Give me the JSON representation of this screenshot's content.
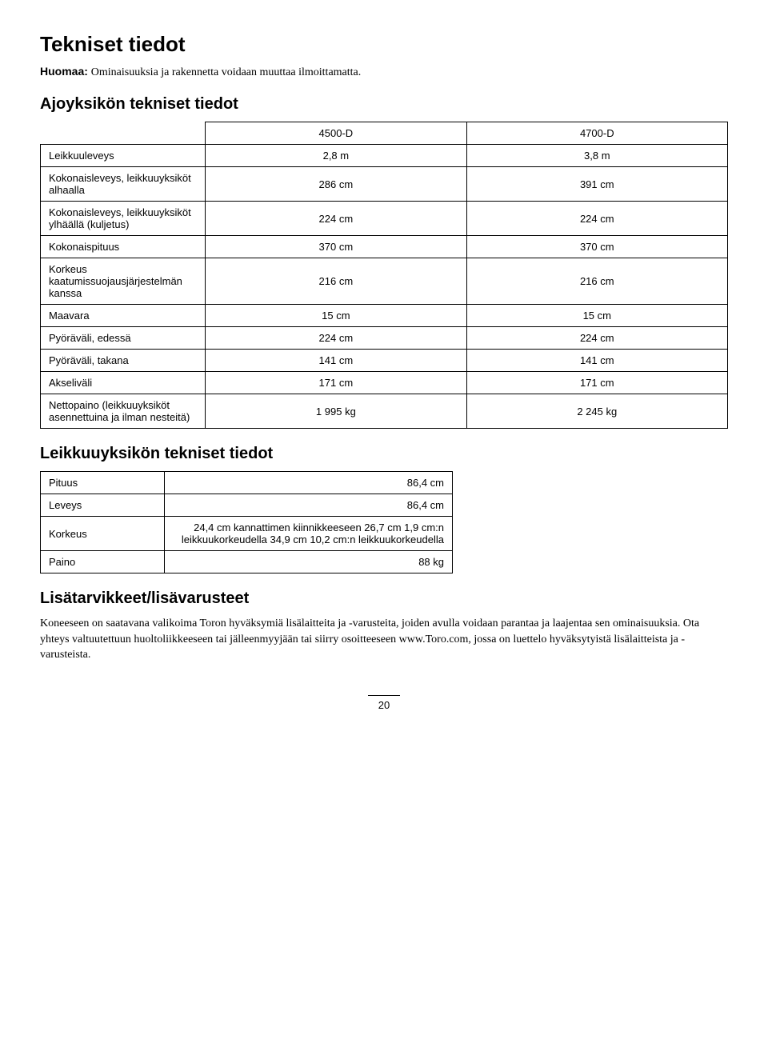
{
  "page_title": "Tekniset tiedot",
  "note_label": "Huomaa:",
  "note_text": "Ominaisuuksia ja rakennetta voidaan muuttaa ilmoittamatta.",
  "section1_title": "Ajoyksikön tekniset tiedot",
  "table1": {
    "col2_header": "4500-D",
    "col3_header": "4700-D",
    "rows": [
      {
        "label": "Leikkuuleveys",
        "v1": "2,8 m",
        "v2": "3,8 m"
      },
      {
        "label": "Kokonaisleveys, leikkuuyksiköt alhaalla",
        "v1": "286 cm",
        "v2": "391 cm"
      },
      {
        "label": "Kokonaisleveys, leikkuuyksiköt ylhäällä (kuljetus)",
        "v1": "224 cm",
        "v2": "224 cm"
      },
      {
        "label": "Kokonaispituus",
        "v1": "370 cm",
        "v2": "370 cm"
      },
      {
        "label": "Korkeus kaatumissuojausjärjestelmän kanssa",
        "v1": "216 cm",
        "v2": "216 cm"
      },
      {
        "label": "Maavara",
        "v1": "15 cm",
        "v2": "15 cm"
      },
      {
        "label": "Pyöräväli, edessä",
        "v1": "224 cm",
        "v2": "224 cm"
      },
      {
        "label": "Pyöräväli, takana",
        "v1": "141 cm",
        "v2": "141 cm"
      },
      {
        "label": "Akseliväli",
        "v1": "171 cm",
        "v2": "171 cm"
      },
      {
        "label": "Nettopaino (leikkuuyksiköt asennettuina ja ilman nesteitä)",
        "v1": "1 995 kg",
        "v2": "2 245 kg"
      }
    ]
  },
  "section2_title": "Leikkuuyksikön tekniset tiedot",
  "table2": {
    "rows": [
      {
        "label": "Pituus",
        "value": "86,4 cm"
      },
      {
        "label": "Leveys",
        "value": "86,4 cm"
      },
      {
        "label": "Korkeus",
        "value": "24,4 cm kannattimen kiinnikkeeseen 26,7 cm 1,9 cm:n leikkuukorkeudella 34,9 cm 10,2 cm:n leikkuukorkeudella"
      },
      {
        "label": "Paino",
        "value": "88 kg"
      }
    ]
  },
  "section3_title": "Lisätarvikkeet/lisävarusteet",
  "body1": "Koneeseen on saatavana valikoima Toron hyväksymiä lisälaitteita ja -varusteita, joiden avulla voidaan parantaa ja laajentaa sen ominaisuuksia. Ota yhteys valtuutettuun huoltoliikkeeseen tai jälleenmyyjään tai siirry osoitteeseen www.Toro.com, jossa on luettelo hyväksytyistä lisälaitteista ja -varusteista.",
  "page_number": "20"
}
